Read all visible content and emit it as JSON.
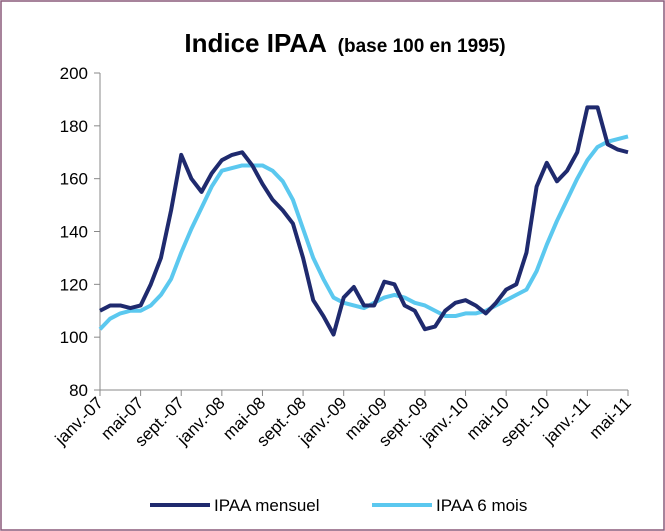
{
  "chart_data": {
    "type": "line",
    "title": "Indice IPAA",
    "subtitle": "(base 100 en 1995)",
    "categories": [
      "janv.-07",
      null,
      null,
      null,
      "mai-07",
      null,
      null,
      null,
      "sept.-07",
      null,
      null,
      null,
      "janv.-08",
      null,
      null,
      null,
      "mai-08",
      null,
      null,
      null,
      "sept.-08",
      null,
      null,
      null,
      "janv.-09",
      null,
      null,
      null,
      "mai-09",
      null,
      null,
      null,
      "sept.-09",
      null,
      null,
      null,
      "janv.-10",
      null,
      null,
      null,
      "mai-10",
      null,
      null,
      null,
      "sept.-10",
      null,
      null,
      null,
      "janv.-11",
      null,
      null,
      null,
      "mai-11"
    ],
    "series": [
      {
        "name": "IPAA mensuel",
        "color": "#1f2a6e",
        "values": [
          110,
          112,
          112,
          111,
          112,
          120,
          130,
          148,
          169,
          160,
          155,
          162,
          167,
          169,
          170,
          165,
          158,
          152,
          148,
          143,
          130,
          114,
          108,
          101,
          115,
          119,
          112,
          112,
          121,
          120,
          112,
          110,
          103,
          104,
          110,
          113,
          114,
          112,
          109,
          113,
          118,
          120,
          132,
          157,
          166,
          159,
          163,
          170,
          187,
          187,
          173,
          171,
          170
        ]
      },
      {
        "name": "IPAA 6 mois",
        "color": "#5bc8ef",
        "values": [
          103,
          107,
          109,
          110,
          110,
          112,
          116,
          122,
          132,
          141,
          149,
          157,
          163,
          164,
          165,
          165,
          165,
          163,
          159,
          152,
          141,
          130,
          122,
          115,
          113,
          112,
          111,
          113,
          115,
          116,
          115,
          113,
          112,
          110,
          108,
          108,
          109,
          109,
          110,
          112,
          114,
          116,
          118,
          125,
          135,
          144,
          152,
          160,
          167,
          172,
          174,
          175,
          176
        ]
      }
    ],
    "ylim": [
      80,
      200
    ],
    "yticks": [
      80,
      100,
      120,
      140,
      160,
      180,
      200
    ],
    "grid": false
  }
}
